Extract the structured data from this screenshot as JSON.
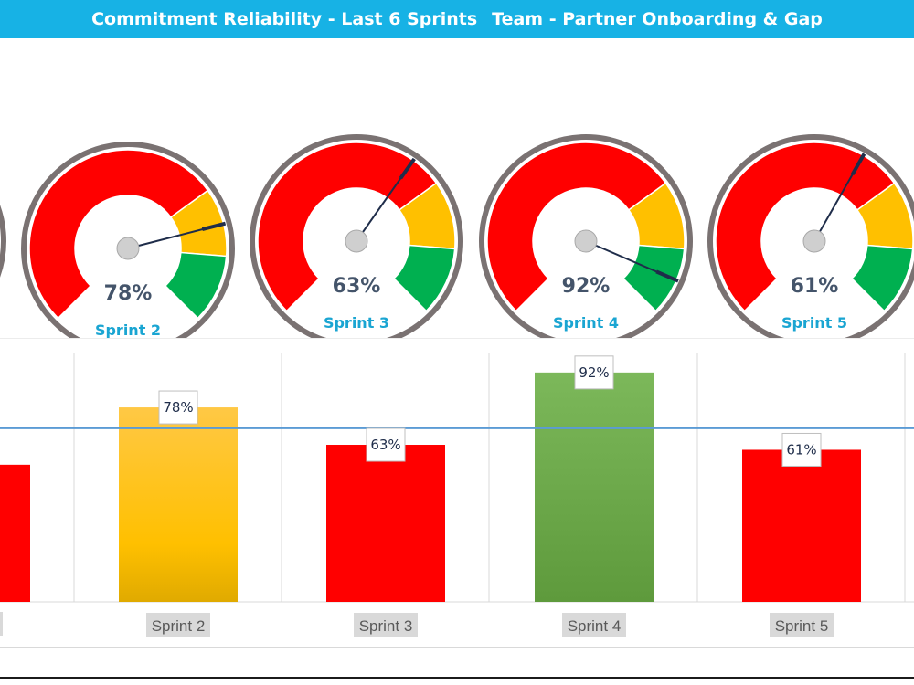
{
  "header": {
    "title_left": "Commitment Reliability - Last 6 Sprints",
    "title_right": "Team - Partner Onboarding & Gap"
  },
  "colors": {
    "header_bg": "#17b2e5",
    "gauge_red": "#ff0000",
    "gauge_amber": "#ffc000",
    "gauge_green": "#00b050",
    "sprint_label": "#1aa5d2",
    "value_text": "#44546a",
    "bar_red": "#ff0000",
    "bar_amber": "#ffc000",
    "bar_green": "#70ad47",
    "target_line": "#5b9bd5"
  },
  "chart_data": [
    {
      "type": "gauge",
      "title": "",
      "zones": [
        {
          "name": "red",
          "from": 0,
          "to": 70
        },
        {
          "name": "amber",
          "from": 70,
          "to": 85
        },
        {
          "name": "green",
          "from": 85,
          "to": 100
        }
      ],
      "gauges": [
        {
          "label": "Sprint 2",
          "value": 78,
          "display": "78%"
        },
        {
          "label": "Sprint 3",
          "value": 63,
          "display": "63%"
        },
        {
          "label": "Sprint 4",
          "value": 92,
          "display": "92%"
        },
        {
          "label": "Sprint 5",
          "value": 61,
          "display": "61%"
        }
      ]
    },
    {
      "type": "bar",
      "title": "",
      "xlabel": "",
      "ylabel": "",
      "ylim": [
        0,
        100
      ],
      "categories": [
        "Sprint 2",
        "Sprint 3",
        "Sprint 4",
        "Sprint 5"
      ],
      "values": [
        78,
        63,
        92,
        61
      ],
      "data_labels": [
        "78%",
        "63%",
        "92%",
        "61%"
      ],
      "bar_colors": [
        "amber",
        "red",
        "green",
        "red"
      ],
      "target_line": 70,
      "grid": "vertical",
      "legend": "none"
    }
  ]
}
